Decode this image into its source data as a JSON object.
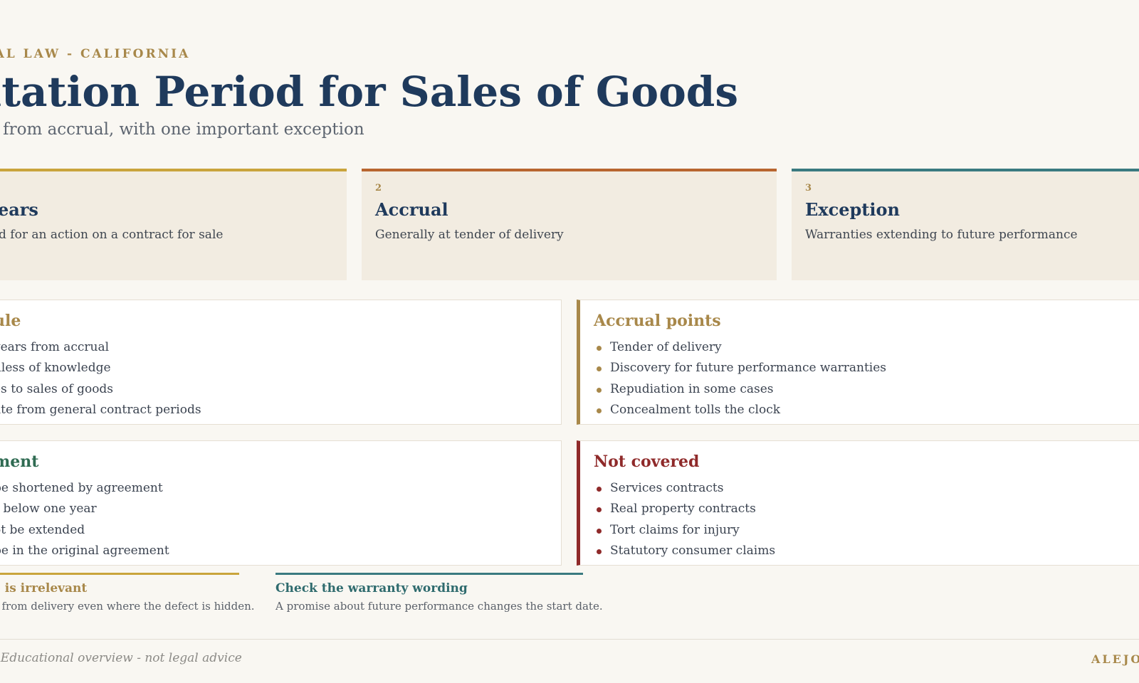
{
  "header": {
    "eyebrow": "RCIAL LAW - CALIFORNIA",
    "title": "nitation Period for Sales of Goods",
    "subtitle": "rs from accrual, with one important exception"
  },
  "cards": [
    {
      "num": "",
      "title": "years",
      "desc": "d for an action on a contract for sale",
      "accent": "#c9a43c"
    },
    {
      "num": "2",
      "title": "Accrual",
      "desc": "Generally at tender of delivery",
      "accent": "#b8652f"
    },
    {
      "num": "3",
      "title": "Exception",
      "desc": "Warranties extending to future performance",
      "accent": "#3a7a80"
    }
  ],
  "panels": {
    "rule": {
      "title": "ule",
      "color": "#a8884a",
      "items": [
        "years from accrual",
        "dless of knowledge",
        "es to sales of goods",
        "ate from general contract periods"
      ]
    },
    "accrual_points": {
      "title": "Accrual points",
      "color": "#a8884a",
      "items": [
        "Tender of delivery",
        "Discovery for future performance warranties",
        "Repudiation in some cases",
        "Concealment tolls the clock"
      ]
    },
    "agreement": {
      "title": "ment",
      "color": "#2f6b52",
      "items": [
        "be shortened by agreement",
        "r below one year",
        "ot be extended",
        "be in the original agreement"
      ]
    },
    "not_covered": {
      "title": "Not covered",
      "color": "#8f2a2a",
      "items": [
        "Services contracts",
        "Real property contracts",
        "Tort claims for injury",
        "Statutory consumer claims"
      ]
    }
  },
  "notes": [
    {
      "title": "e is irrelevant",
      "text": "s from delivery even where the defect is hidden.",
      "accent": "#c9a43c",
      "title_color": "#a8884a"
    },
    {
      "title": "Check the warranty wording",
      "text": "A promise about future performance changes the start date.",
      "accent": "#3a7a80",
      "title_color": "#2f6b6e"
    }
  ],
  "footer": {
    "left": "· Educational overview - not legal advice",
    "right": "ALEJO"
  }
}
